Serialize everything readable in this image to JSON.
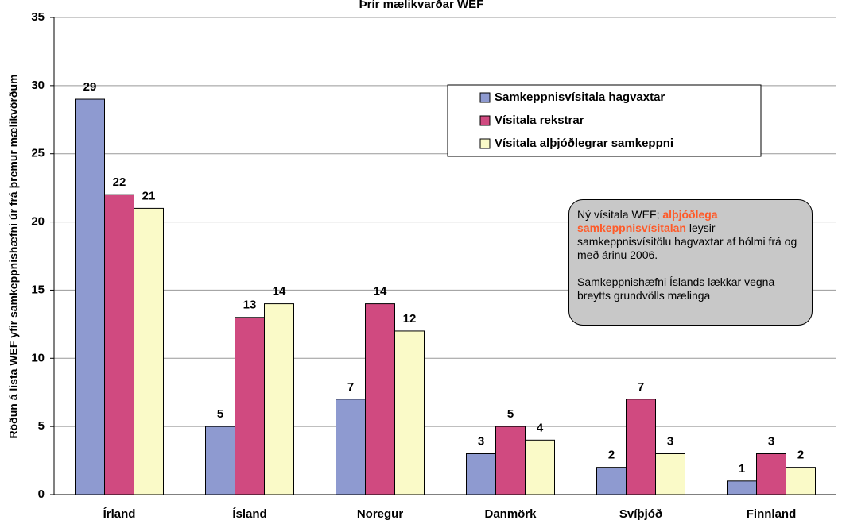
{
  "chart_data": {
    "type": "bar",
    "title": "Þrír mælikvarðar WEF",
    "y_label": "Röðun á lista WEF yfir samkeppnishæfni úr frá þremur mælikvörðum",
    "categories": [
      "Írland",
      "Ísland",
      "Noregur",
      "Danmörk",
      "Svíþjóð",
      "Finnland"
    ],
    "series": [
      {
        "name": "Samkeppnisvísitala hagvaxtar",
        "color": "#8e9ad0",
        "values": [
          29,
          5,
          7,
          3,
          2,
          1
        ]
      },
      {
        "name": "Vísitala rekstrar",
        "color": "#d04a80",
        "values": [
          22,
          13,
          14,
          5,
          7,
          3
        ]
      },
      {
        "name": "Vísitala alþjóðlegrar samkeppni",
        "color": "#fafac8",
        "values": [
          21,
          14,
          12,
          4,
          3,
          2
        ]
      }
    ],
    "ylim": [
      0,
      35
    ],
    "yticks": [
      0,
      5,
      10,
      15,
      20,
      25,
      30,
      35
    ],
    "grid": true,
    "annotation": {
      "intro": "Ný vísitala WEF; ",
      "highlight": "alþjóðlega samkeppnisvísitalan",
      "rest": " leysir samkeppnisvísitölu hagvaxtar af hólmi frá og með árinu 2006.",
      "note": "Samkeppnishæfni Íslands lækkar vegna breytts grundvölls mælinga"
    }
  }
}
